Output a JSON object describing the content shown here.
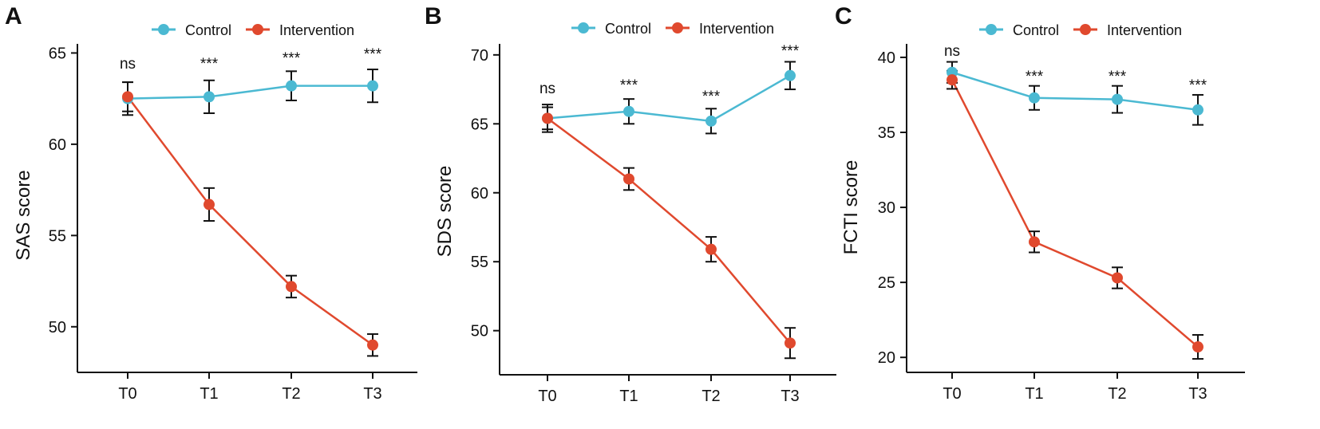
{
  "colors": {
    "control": "#4BB9D2",
    "intervention": "#E0492E",
    "axis": "#111111"
  },
  "legend": [
    {
      "key": "control",
      "label": "Control"
    },
    {
      "key": "intervention",
      "label": "Intervention"
    }
  ],
  "chart_data": [
    {
      "panel": "A",
      "type": "line",
      "ylabel": "SAS score",
      "categories": [
        "T0",
        "T1",
        "T2",
        "T3"
      ],
      "ylim": [
        47.5,
        65.5
      ],
      "yticks": [
        50,
        55,
        60,
        65
      ],
      "series": [
        {
          "key": "control",
          "name": "Control",
          "values": [
            62.5,
            62.6,
            63.2,
            63.2
          ],
          "errors": [
            0.9,
            0.9,
            0.8,
            0.9
          ]
        },
        {
          "key": "intervention",
          "name": "Intervention",
          "values": [
            62.6,
            56.7,
            52.2,
            49.0
          ],
          "errors": [
            0.8,
            0.9,
            0.6,
            0.6
          ]
        }
      ],
      "significance": [
        "ns",
        "***",
        "***",
        "***"
      ]
    },
    {
      "panel": "B",
      "type": "line",
      "ylabel": "SDS score",
      "categories": [
        "T0",
        "T1",
        "T2",
        "T3"
      ],
      "ylim": [
        46.8,
        70.8
      ],
      "yticks": [
        50,
        55,
        60,
        65,
        70
      ],
      "series": [
        {
          "key": "control",
          "name": "Control",
          "values": [
            65.4,
            65.9,
            65.2,
            68.5
          ],
          "errors": [
            1.0,
            0.9,
            0.9,
            1.0
          ]
        },
        {
          "key": "intervention",
          "name": "Intervention",
          "values": [
            65.4,
            61.0,
            55.9,
            49.1
          ],
          "errors": [
            0.8,
            0.8,
            0.9,
            1.1
          ]
        }
      ],
      "significance": [
        "ns",
        "***",
        "***",
        "***"
      ]
    },
    {
      "panel": "C",
      "type": "line",
      "ylabel": "FCTI score",
      "categories": [
        "T0",
        "T1",
        "T2",
        "T3"
      ],
      "ylim": [
        19.0,
        40.9
      ],
      "yticks": [
        20,
        25,
        30,
        35,
        40
      ],
      "series": [
        {
          "key": "control",
          "name": "Control",
          "values": [
            39.0,
            37.3,
            37.2,
            36.5
          ],
          "errors": [
            0.7,
            0.8,
            0.9,
            1.0
          ]
        },
        {
          "key": "intervention",
          "name": "Intervention",
          "values": [
            38.5,
            27.7,
            25.3,
            20.7
          ],
          "errors": [
            0.6,
            0.7,
            0.7,
            0.8
          ]
        }
      ],
      "significance": [
        "ns",
        "***",
        "***",
        "***"
      ]
    }
  ]
}
